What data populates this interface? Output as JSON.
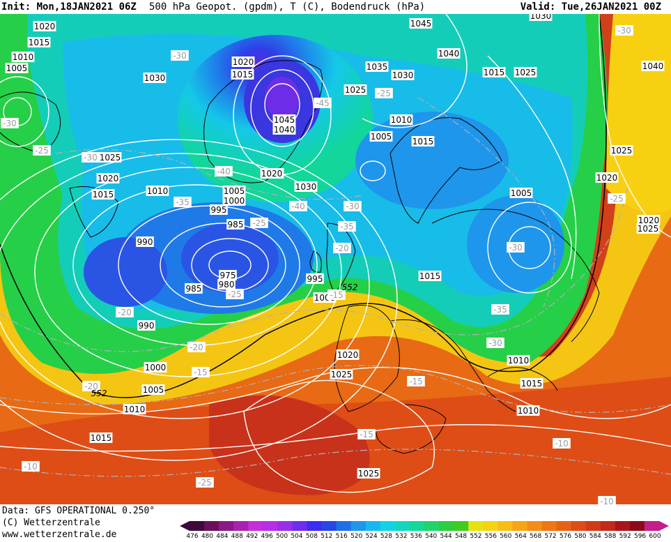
{
  "header": {
    "init": "Init: Mon,18JAN2021 06Z",
    "title": "500 hPa Geopot. (gpdm), T (C), Bodendruck (hPa)",
    "valid": "Valid: Tue,26JAN2021 00Z"
  },
  "footer": {
    "line1": "Data: GFS OPERATIONAL 0.250°",
    "line2": "(C) Wetterzentrale",
    "line3": "www.wetterzentrale.de"
  },
  "colorbar": {
    "values": [
      "476",
      "480",
      "484",
      "488",
      "492",
      "496",
      "500",
      "504",
      "508",
      "512",
      "516",
      "520",
      "524",
      "528",
      "532",
      "536",
      "540",
      "544",
      "548",
      "552",
      "556",
      "560",
      "564",
      "568",
      "572",
      "576",
      "580",
      "584",
      "588",
      "592",
      "596",
      "600"
    ],
    "colors": [
      "#3d0a3a",
      "#6a0f5c",
      "#8a1a86",
      "#a822b0",
      "#c42fd8",
      "#b62ee6",
      "#9a2ee8",
      "#6f2df0",
      "#3d2cf2",
      "#2647e6",
      "#1f6fe8",
      "#1e96ec",
      "#17b8f0",
      "#13d2e6",
      "#10d8c0",
      "#12d898",
      "#20d46a",
      "#2ccd3e",
      "#3fcc20",
      "#e6e20f",
      "#f4d412",
      "#f9bd17",
      "#f7a516",
      "#f48d16",
      "#ee7614",
      "#e86214",
      "#de4d16",
      "#d23a18",
      "#c22b1a",
      "#a8151c",
      "#8c0a1a",
      "#c41e8c"
    ]
  },
  "map": {
    "isobar_labels": [
      "1020",
      "1015",
      "1010",
      "1005",
      "1030",
      "1020",
      "1015",
      "1045",
      "1040",
      "1035",
      "1030",
      "1025",
      "1040",
      "1015",
      "1025",
      "1040",
      "1030",
      "1045",
      "1040",
      "1025",
      "1020",
      "1015",
      "1010",
      "1005",
      "1000",
      "995",
      "985",
      "990",
      "975",
      "980",
      "985",
      "990",
      "1000",
      "1005",
      "1010",
      "1015",
      "1000",
      "995",
      "1015",
      "1020",
      "1025",
      "1010",
      "1015",
      "1020",
      "1025",
      "1005",
      "1020",
      "1025",
      "1010",
      "1005",
      "1000",
      "1025",
      "1010",
      "1015",
      "1020",
      "1030"
    ],
    "temp_labels": [
      "-30",
      "-30",
      "-25",
      "-30",
      "-45",
      "-40",
      "-40",
      "-35",
      "-30",
      "-35",
      "-25",
      "-25",
      "-20",
      "-20",
      "-25",
      "-30",
      "-20",
      "-15",
      "-15",
      "-15",
      "-10",
      "-10",
      "-25",
      "-20",
      "-35",
      "-30",
      "-30",
      "-25",
      "-15",
      "-10"
    ],
    "height_labels": [
      "552",
      "552"
    ],
    "colors": {
      "isobar": "#ffffff",
      "temp_contour": "#b0b0b8",
      "coastline": "#000000"
    }
  }
}
